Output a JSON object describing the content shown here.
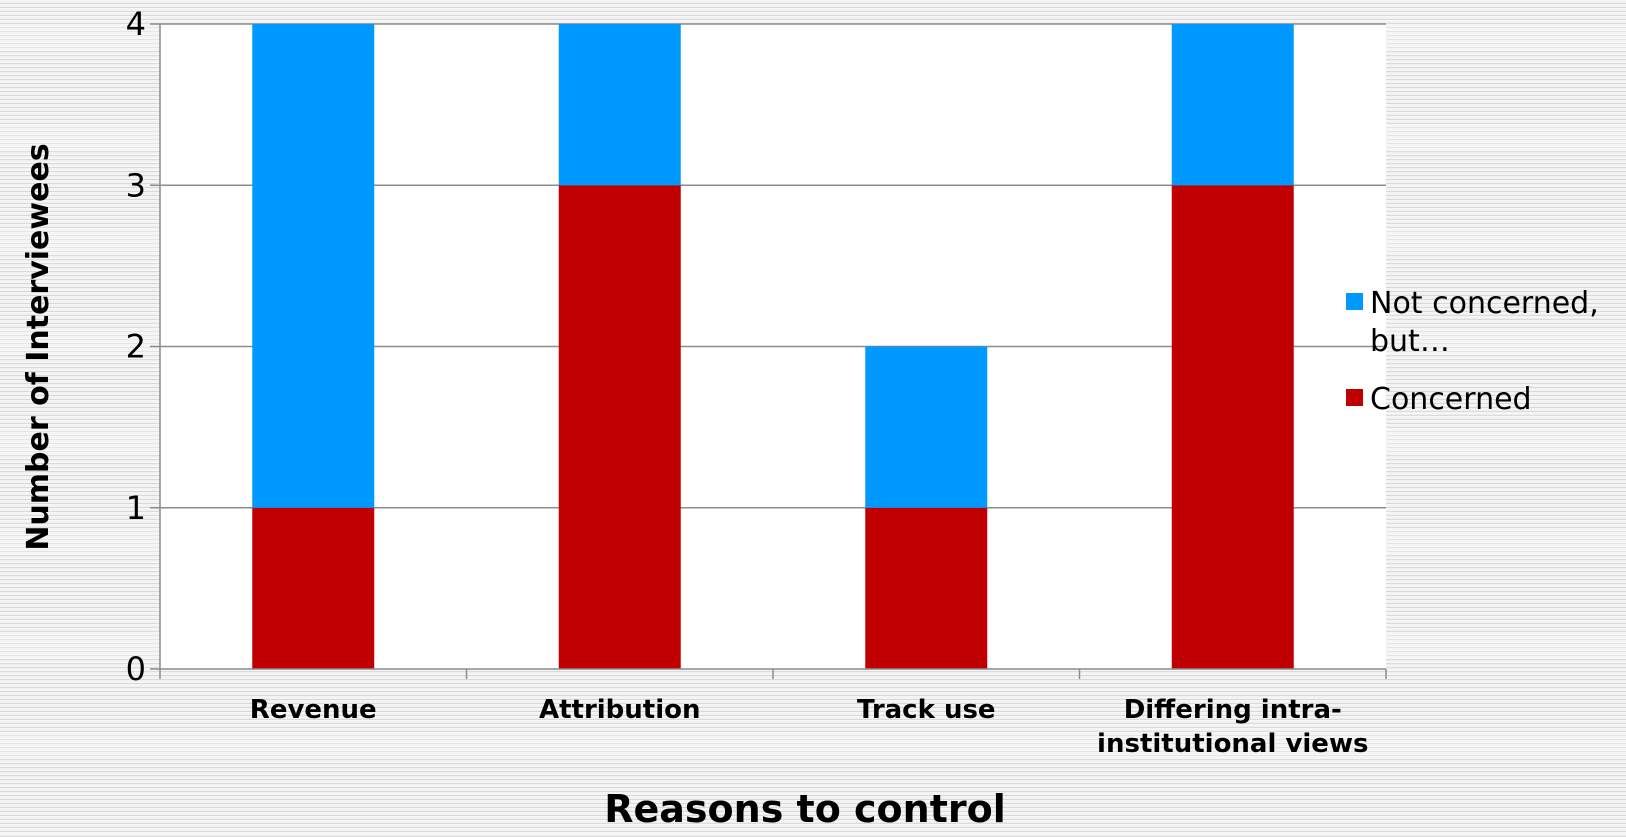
{
  "chart_data": {
    "type": "bar",
    "stacked": true,
    "title": "",
    "xlabel": "Reasons to control",
    "ylabel": "Number of Interviewees",
    "categories": [
      [
        "Revenue"
      ],
      [
        "Attribution"
      ],
      [
        "Track use"
      ],
      [
        "Differing intra-",
        "institutional views"
      ]
    ],
    "series": [
      {
        "name": "Concerned",
        "color": "#c00000",
        "values": [
          1,
          3,
          1,
          3
        ]
      },
      {
        "name": "Not concerned, but…",
        "color": "#0099ff",
        "values": [
          3,
          1,
          1,
          1
        ]
      }
    ],
    "ylim": [
      0,
      4
    ],
    "yticks": [
      "0",
      "1",
      "2",
      "3",
      "4"
    ],
    "grid": true,
    "legend": {
      "position": "right",
      "entries": [
        {
          "label_lines": [
            "Not concerned,",
            "but…"
          ],
          "color": "#0099ff"
        },
        {
          "label_lines": [
            "Concerned"
          ],
          "color": "#c00000"
        }
      ]
    }
  }
}
